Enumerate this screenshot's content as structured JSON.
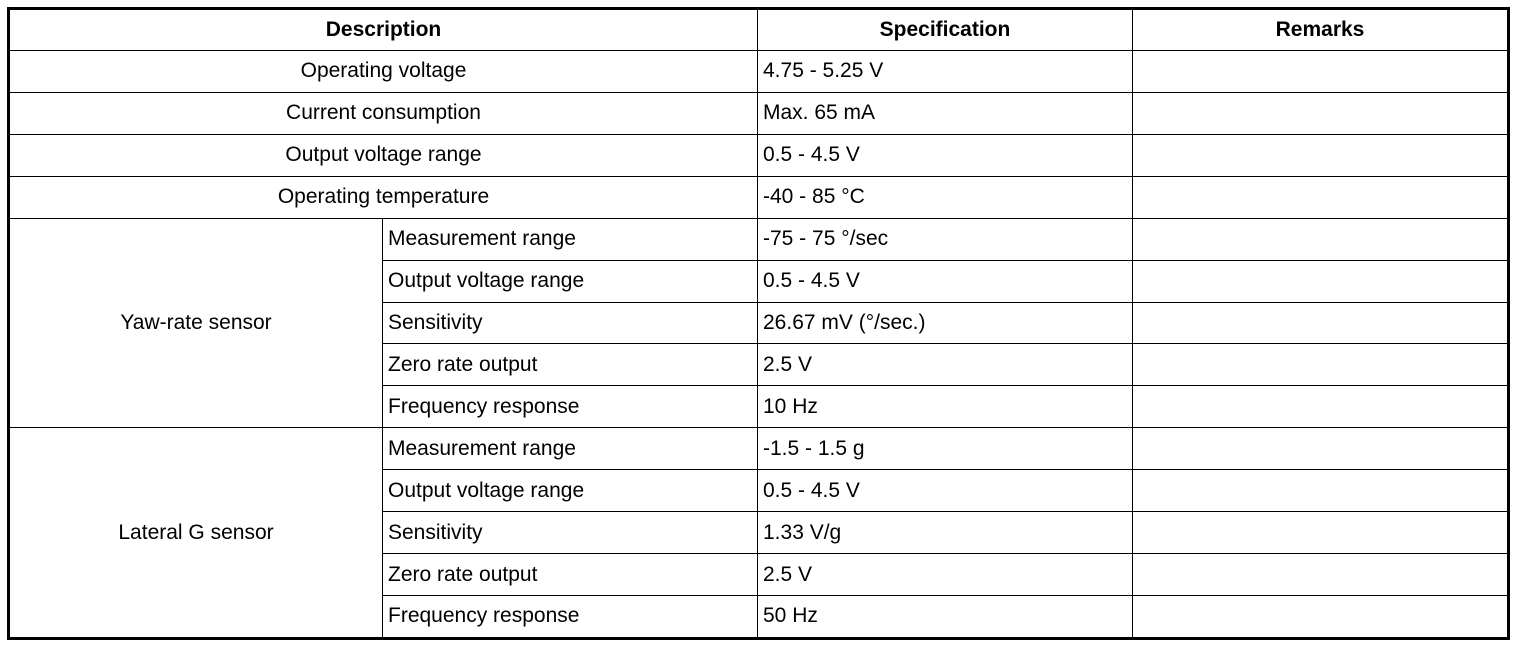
{
  "table": {
    "header": [
      "Description",
      "Specification",
      "Remarks"
    ],
    "rows": [
      {
        "description": "Operating voltage",
        "specification": "4.75 - 5.25 V"
      },
      {
        "description": "Current consumption",
        "specification": "Max. 65 mA"
      },
      {
        "description": "Output voltage range",
        "specification": "0.5 - 4.5 V"
      },
      {
        "description": "Operating temperature",
        "specification": "-40 - 85 °C"
      },
      {
        "group": "Yaw-rate sensor",
        "items": [
          {
            "item": "Measurement range",
            "specification": "-75 - 75 °/sec"
          },
          {
            "item": "Output voltage range",
            "specification": "0.5 - 4.5 V"
          },
          {
            "item": "Sensitivity",
            "specification": "26.67 mV (°/sec.)"
          },
          {
            "item": "Zero rate output",
            "specification": "2.5 V"
          },
          {
            "item": "Frequency response",
            "specification": "10 Hz"
          }
        ]
      },
      {
        "group": "Lateral G sensor",
        "items": [
          {
            "item": "Measurement range",
            "specification": "-1.5 - 1.5 g"
          },
          {
            "item": "Output voltage range",
            "specification": "0.5 - 4.5 V"
          },
          {
            "item": "Sensitivity",
            "specification": "1.33 V/g"
          },
          {
            "item": "Zero rate output",
            "specification": "2.5 V"
          },
          {
            "item": "Frequency response",
            "specification": "50 Hz"
          }
        ]
      }
    ]
  }
}
